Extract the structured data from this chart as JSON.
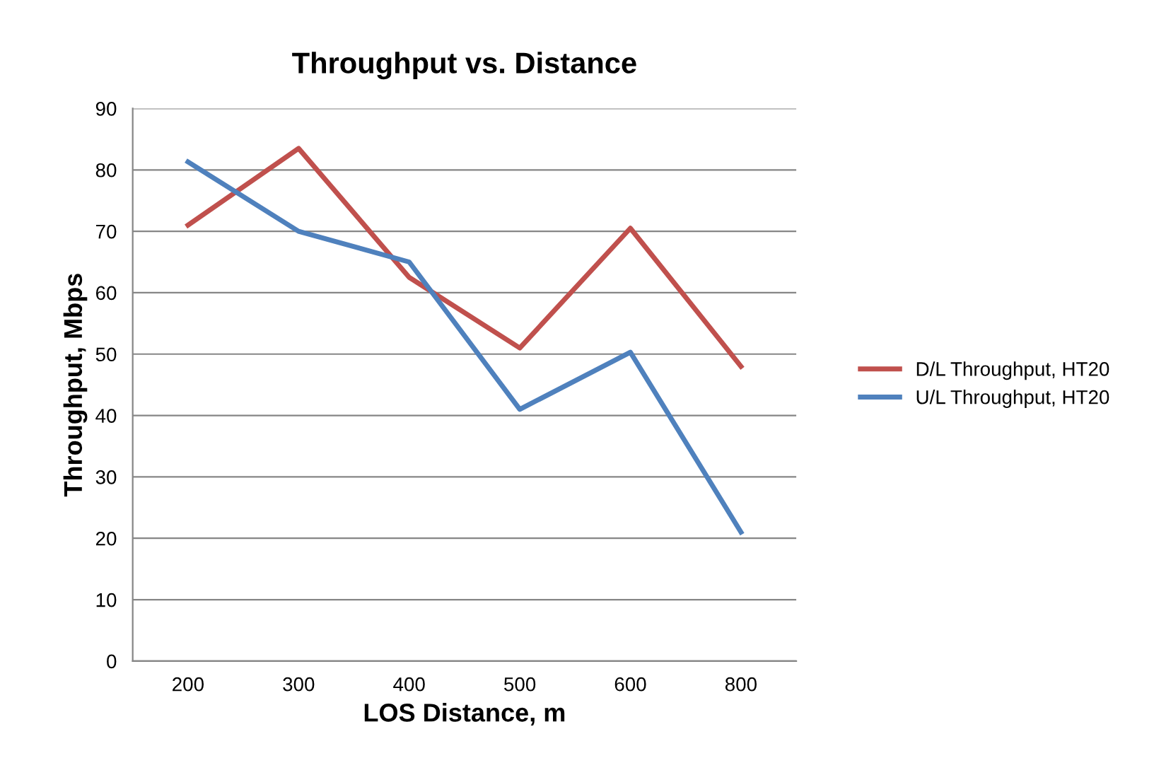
{
  "chart_data": {
    "type": "line",
    "title": "Throughput vs. Distance",
    "xlabel": "LOS Distance, m",
    "ylabel": "Throughput, Mbps",
    "categories": [
      "200",
      "300",
      "400",
      "500",
      "600",
      "800"
    ],
    "series": [
      {
        "name": "D/L Throughput, HT20",
        "color": "#c0504d",
        "values": [
          71,
          83.5,
          62.5,
          51,
          70.5,
          48
        ]
      },
      {
        "name": "U/L Throughput, HT20",
        "color": "#4f81bd",
        "values": [
          81.3,
          70,
          65,
          41,
          50.3,
          21
        ]
      }
    ],
    "ylim": [
      0,
      90
    ],
    "yticks": [
      0,
      10,
      20,
      30,
      40,
      50,
      60,
      70,
      80,
      90
    ],
    "grid": "y",
    "legend": "right",
    "marker": "none",
    "line_style": "solid"
  }
}
